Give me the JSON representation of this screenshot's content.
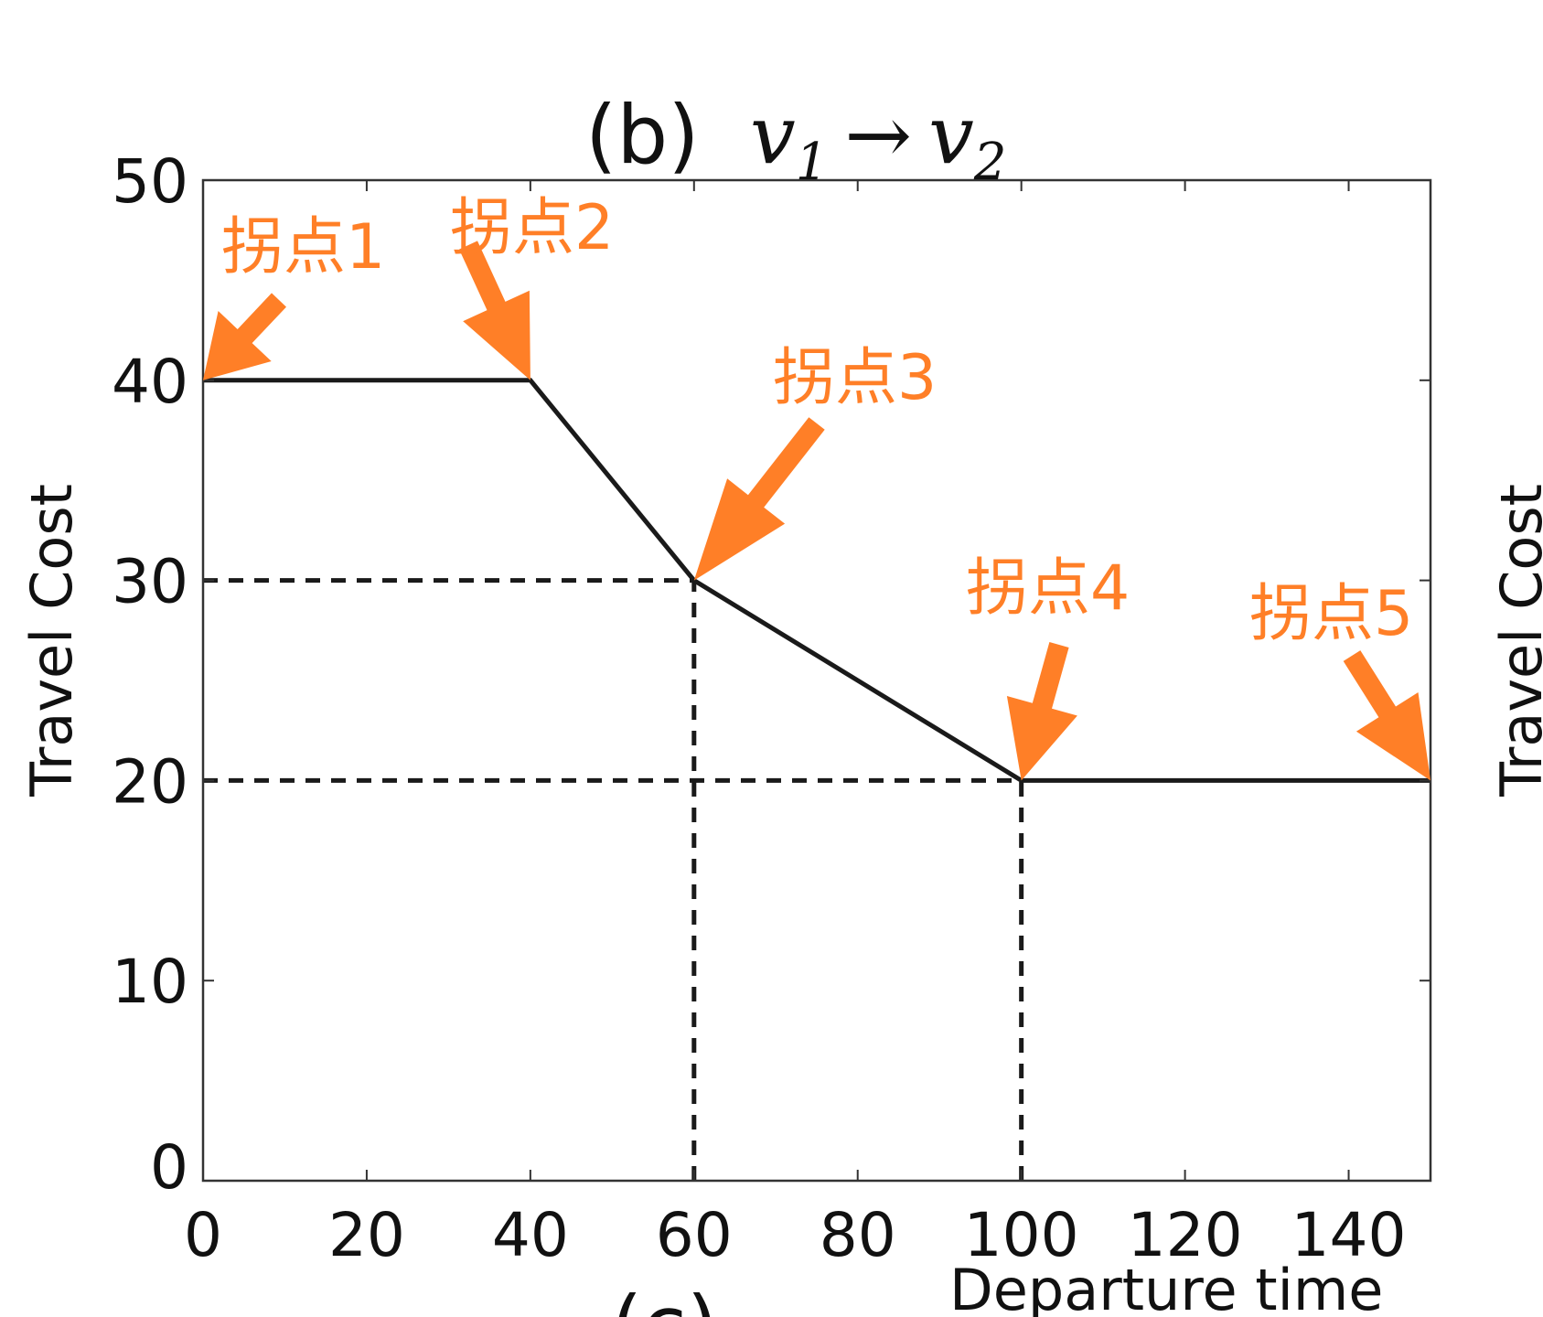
{
  "chart_data": {
    "type": "line",
    "title": "(b)",
    "title_math": {
      "from": "v",
      "from_sub": "1",
      "arrow": "→",
      "to": "v",
      "to_sub": "2"
    },
    "xlabel": "Departure time",
    "ylabel": "Travel Cost",
    "side_ylabel": "Travel Cost",
    "xlim": [
      0,
      150
    ],
    "ylim": [
      0,
      50
    ],
    "xticks": [
      0,
      20,
      40,
      60,
      80,
      100,
      120,
      140
    ],
    "yticks": [
      0,
      10,
      20,
      30,
      40,
      50
    ],
    "grid": false,
    "series": [
      {
        "x": [
          0,
          40,
          60,
          100,
          150
        ],
        "y": [
          40,
          40,
          30,
          20,
          20
        ],
        "color": "#1a1a1a"
      }
    ],
    "reference_lines": [
      {
        "from": [
          0,
          30
        ],
        "to": [
          60,
          30
        ]
      },
      {
        "from": [
          60,
          0
        ],
        "to": [
          60,
          30
        ]
      },
      {
        "from": [
          0,
          20
        ],
        "to": [
          100,
          20
        ]
      },
      {
        "from": [
          100,
          0
        ],
        "to": [
          100,
          20
        ]
      }
    ],
    "annotations": [
      {
        "text": "拐点1",
        "point": [
          0,
          40
        ]
      },
      {
        "text": "拐点2",
        "point": [
          40,
          40
        ]
      },
      {
        "text": "拐点3",
        "point": [
          60,
          30
        ]
      },
      {
        "text": "拐点4",
        "point": [
          100,
          20
        ]
      },
      {
        "text": "拐点5",
        "point": [
          150,
          20
        ]
      }
    ],
    "annotation_color": "#ff7f27",
    "partial_bottom_text": "(c)"
  }
}
